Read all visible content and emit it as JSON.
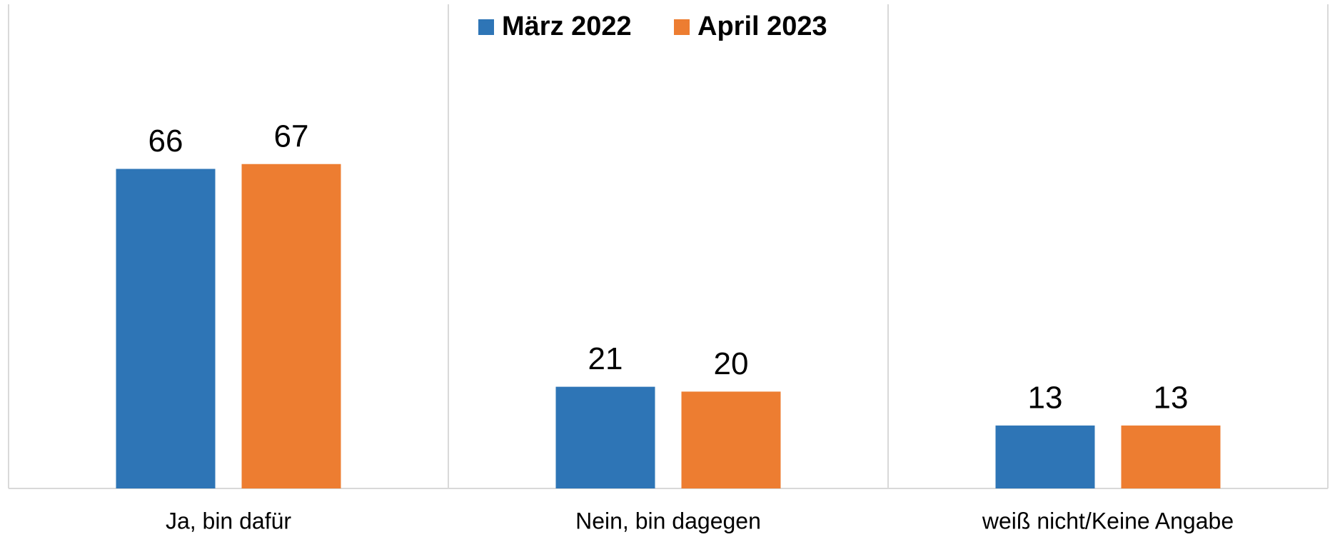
{
  "chart_data": {
    "type": "bar",
    "categories": [
      "Ja, bin dafür",
      "Nein, bin dagegen",
      "weiß nicht/Keine Angabe"
    ],
    "series": [
      {
        "name": "März 2022",
        "color": "#2e75b6",
        "values": [
          66,
          21,
          13
        ]
      },
      {
        "name": "April 2023",
        "color": "#ed7d31",
        "values": [
          67,
          20,
          13
        ]
      }
    ],
    "ylim": [
      0,
      100
    ],
    "legend": "top"
  }
}
